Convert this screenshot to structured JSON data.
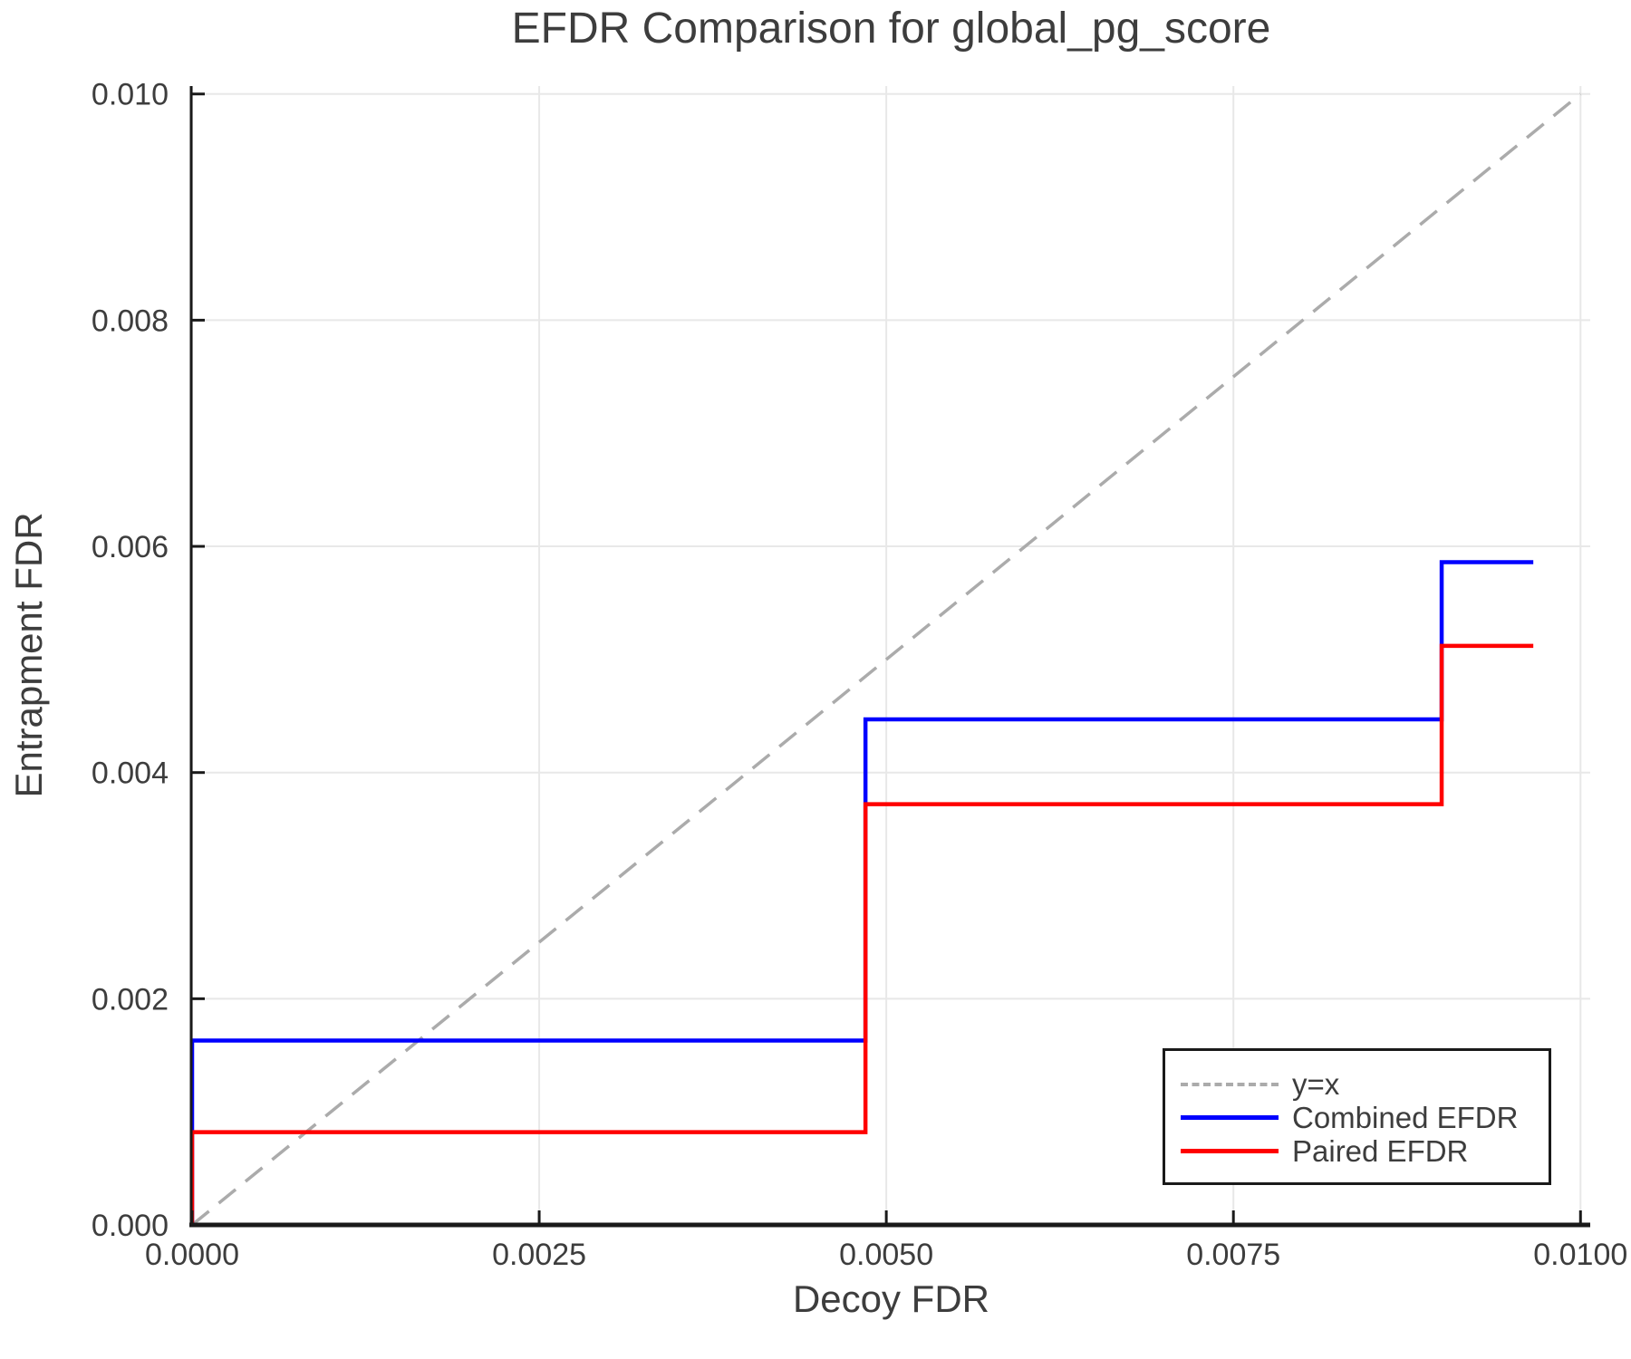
{
  "chart_data": {
    "type": "line",
    "title": "EFDR Comparison for global_pg_score",
    "xlabel": "Decoy FDR",
    "ylabel": "Entrapment FDR",
    "xlim": [
      0.0,
      0.01007
    ],
    "ylim": [
      0.0,
      0.01007
    ],
    "grid": true,
    "legend_position": "lower right",
    "axis_color": "#1a1a1a",
    "grid_color": "#e8e8e8",
    "text_color": "#3d3d3d",
    "xticks": {
      "values": [
        0.0,
        0.0025,
        0.005,
        0.0075,
        0.01
      ],
      "labels": [
        "0.0000",
        "0.0025",
        "0.0050",
        "0.0075",
        "0.0100"
      ]
    },
    "yticks": {
      "values": [
        0.0,
        0.002,
        0.004,
        0.006,
        0.008,
        0.01
      ],
      "labels": [
        "0.000",
        "0.002",
        "0.004",
        "0.006",
        "0.008",
        "0.010"
      ]
    },
    "series": [
      {
        "name": "y=x",
        "style": "dashed",
        "color": "#ababab",
        "width": 3.5,
        "x": [
          0.0,
          0.01
        ],
        "y": [
          0.0,
          0.01
        ]
      },
      {
        "name": "Combined EFDR",
        "style": "solid",
        "color": "#0000ff",
        "width": 4.5,
        "x": [
          0.0,
          0.0,
          0.00485,
          0.00485,
          0.009,
          0.009,
          0.00966
        ],
        "y": [
          0.0,
          0.00163,
          0.00163,
          0.00447,
          0.00447,
          0.00586,
          0.00586
        ]
      },
      {
        "name": "Paired EFDR",
        "style": "solid",
        "color": "#ff0000",
        "width": 4.5,
        "x": [
          0.0,
          0.0,
          0.00485,
          0.00485,
          0.009,
          0.009,
          0.00966
        ],
        "y": [
          0.0,
          0.00082,
          0.00082,
          0.00372,
          0.00372,
          0.00512,
          0.00512
        ]
      }
    ]
  }
}
